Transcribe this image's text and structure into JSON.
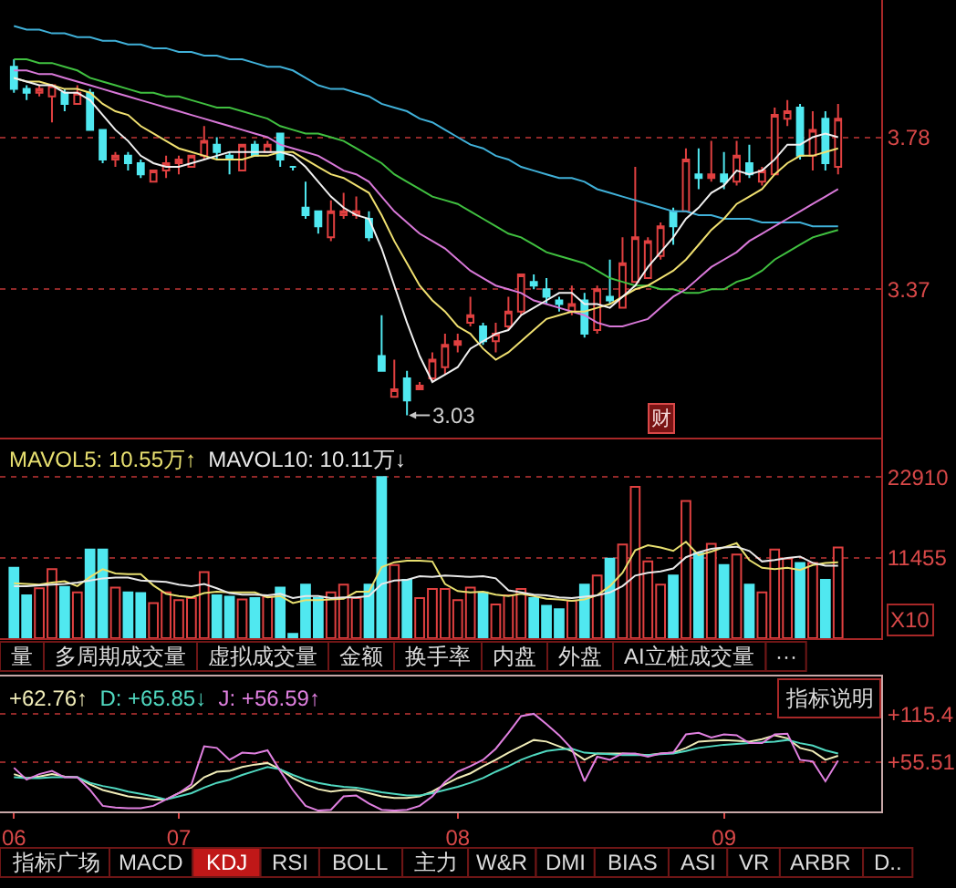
{
  "chart_data": [
    {
      "type": "candlestick",
      "categories": [
        "06",
        null,
        null,
        null,
        null,
        null,
        null,
        null,
        null,
        null,
        null,
        null,
        null,
        "07",
        null,
        null,
        null,
        null,
        null,
        null,
        null,
        null,
        null,
        null,
        null,
        null,
        null,
        null,
        null,
        null,
        null,
        null,
        null,
        null,
        null,
        "08",
        null,
        null,
        null,
        null,
        null,
        null,
        null,
        null,
        null,
        null,
        null,
        null,
        null,
        null,
        null,
        null,
        null,
        null,
        null,
        null,
        "09",
        null,
        null,
        null,
        null,
        null,
        null,
        null,
        null,
        null
      ],
      "ohlc": [
        [
          3.97,
          3.99,
          3.9,
          3.91
        ],
        [
          3.91,
          3.92,
          3.88,
          3.9
        ],
        [
          3.9,
          3.92,
          3.89,
          3.91
        ],
        [
          3.89,
          3.92,
          3.82,
          3.92
        ],
        [
          3.9,
          3.91,
          3.85,
          3.87
        ],
        [
          3.87,
          3.92,
          3.87,
          3.9
        ],
        [
          3.9,
          3.91,
          3.8,
          3.8
        ],
        [
          3.8,
          3.8,
          3.71,
          3.72
        ],
        [
          3.72,
          3.74,
          3.7,
          3.73
        ],
        [
          3.73,
          3.74,
          3.69,
          3.71
        ],
        [
          3.71,
          3.72,
          3.67,
          3.68
        ],
        [
          3.66,
          3.69,
          3.66,
          3.69
        ],
        [
          3.69,
          3.73,
          3.67,
          3.71
        ],
        [
          3.71,
          3.73,
          3.68,
          3.72
        ],
        [
          3.7,
          3.73,
          3.7,
          3.73
        ],
        [
          3.73,
          3.81,
          3.72,
          3.77
        ],
        [
          3.76,
          3.78,
          3.72,
          3.74
        ],
        [
          3.73,
          3.74,
          3.68,
          3.72
        ],
        [
          3.69,
          3.76,
          3.69,
          3.76
        ],
        [
          3.76,
          3.77,
          3.73,
          3.73
        ],
        [
          3.74,
          3.77,
          3.74,
          3.76
        ],
        [
          3.79,
          3.79,
          3.7,
          3.72
        ],
        [
          3.7,
          3.7,
          3.69,
          3.7
        ],
        [
          3.59,
          3.66,
          3.56,
          3.57
        ],
        [
          3.58,
          3.58,
          3.52,
          3.54
        ],
        [
          3.51,
          3.61,
          3.5,
          3.58
        ],
        [
          3.57,
          3.63,
          3.56,
          3.58
        ],
        [
          3.57,
          3.62,
          3.56,
          3.58
        ],
        [
          3.56,
          3.58,
          3.5,
          3.51
        ],
        [
          3.19,
          3.3,
          3.15,
          3.15
        ],
        [
          3.08,
          3.18,
          3.08,
          3.1
        ],
        [
          3.13,
          3.15,
          3.03,
          3.07
        ],
        [
          3.1,
          3.12,
          3.1,
          3.11
        ],
        [
          3.13,
          3.2,
          3.12,
          3.18
        ],
        [
          3.16,
          3.25,
          3.14,
          3.22
        ],
        [
          3.22,
          3.25,
          3.2,
          3.23
        ],
        [
          3.28,
          3.35,
          3.27,
          3.3
        ],
        [
          3.27,
          3.28,
          3.22,
          3.23
        ],
        [
          3.23,
          3.28,
          3.2,
          3.25
        ],
        [
          3.27,
          3.35,
          3.26,
          3.31
        ],
        [
          3.31,
          3.41,
          3.3,
          3.41
        ],
        [
          3.39,
          3.41,
          3.37,
          3.38
        ],
        [
          3.37,
          3.4,
          3.33,
          3.35
        ],
        [
          3.34,
          3.35,
          3.31,
          3.33
        ],
        [
          3.31,
          3.38,
          3.3,
          3.33
        ],
        [
          3.34,
          3.36,
          3.24,
          3.25
        ],
        [
          3.26,
          3.38,
          3.25,
          3.37
        ],
        [
          3.35,
          3.45,
          3.33,
          3.34
        ],
        [
          3.32,
          3.51,
          3.32,
          3.44
        ],
        [
          3.39,
          3.7,
          3.39,
          3.51
        ],
        [
          3.4,
          3.51,
          3.4,
          3.5
        ],
        [
          3.46,
          3.55,
          3.45,
          3.54
        ],
        [
          3.58,
          3.59,
          3.49,
          3.54
        ],
        [
          3.58,
          3.75,
          3.58,
          3.72
        ],
        [
          3.68,
          3.75,
          3.64,
          3.67
        ],
        [
          3.67,
          3.77,
          3.66,
          3.68
        ],
        [
          3.68,
          3.74,
          3.64,
          3.66
        ],
        [
          3.66,
          3.77,
          3.65,
          3.73
        ],
        [
          3.71,
          3.76,
          3.67,
          3.68
        ],
        [
          3.66,
          3.7,
          3.65,
          3.69
        ],
        [
          3.68,
          3.86,
          3.68,
          3.84
        ],
        [
          3.83,
          3.88,
          3.81,
          3.85
        ],
        [
          3.86,
          3.87,
          3.72,
          3.73
        ],
        [
          3.73,
          3.85,
          3.69,
          3.8
        ],
        [
          3.83,
          3.85,
          3.69,
          3.71
        ],
        [
          3.7,
          3.87,
          3.68,
          3.83
        ]
      ],
      "colors": [
        "#50e8f0",
        "#50e8f0",
        "#e04040",
        "#e04040",
        "#50e8f0",
        "#e04040",
        "#50e8f0",
        "#50e8f0",
        "#e04040",
        "#50e8f0",
        "#50e8f0",
        "#e04040",
        "#e04040",
        "#e04040",
        "#e04040",
        "#e04040",
        "#50e8f0",
        "#50e8f0",
        "#e04040",
        "#50e8f0",
        "#e04040",
        "#50e8f0",
        "#50e8f0",
        "#50e8f0",
        "#50e8f0",
        "#e04040",
        "#e04040",
        "#e04040",
        "#50e8f0",
        "#50e8f0",
        "#e04040",
        "#50e8f0",
        "#e04040",
        "#e04040",
        "#e04040",
        "#e04040",
        "#e04040",
        "#50e8f0",
        "#e04040",
        "#e04040",
        "#e04040",
        "#50e8f0",
        "#50e8f0",
        "#50e8f0",
        "#e04040",
        "#50e8f0",
        "#e04040",
        "#50e8f0",
        "#e04040",
        "#e04040",
        "#e04040",
        "#e04040",
        "#50e8f0",
        "#e04040",
        "#50e8f0",
        "#e04040",
        "#50e8f0",
        "#e04040",
        "#50e8f0",
        "#e04040",
        "#e04040",
        "#e04040",
        "#50e8f0",
        "#e04040",
        "#50e8f0",
        "#e04040"
      ],
      "ylim": [
        2.97,
        4.15
      ],
      "yticks": [
        3.37,
        3.78
      ],
      "grid": "y",
      "tick_labels": "y",
      "series": [
        {
          "type": "line",
          "color": "#40b0d8",
          "values": [
            4.08,
            4.07,
            4.07,
            4.06,
            4.06,
            4.05,
            4.05,
            4.04,
            4.04,
            4.03,
            4.03,
            4.02,
            4.02,
            4.01,
            4.01,
            4.0,
            4.0,
            3.99,
            3.99,
            3.98,
            3.97,
            3.97,
            3.96,
            3.94,
            3.92,
            3.91,
            3.91,
            3.9,
            3.89,
            3.87,
            3.86,
            3.85,
            3.83,
            3.82,
            3.8,
            3.78,
            3.76,
            3.75,
            3.73,
            3.72,
            3.7,
            3.69,
            3.68,
            3.67,
            3.67,
            3.66,
            3.64,
            3.63,
            3.62,
            3.61,
            3.6,
            3.59,
            3.58,
            3.58,
            3.57,
            3.57,
            3.56,
            3.56,
            3.56,
            3.55,
            3.55,
            3.55,
            3.55,
            3.54,
            3.54,
            3.54
          ]
        },
        {
          "type": "line",
          "color": "#40c040",
          "values": [
            3.99,
            3.99,
            3.98,
            3.98,
            3.97,
            3.96,
            3.94,
            3.93,
            3.92,
            3.91,
            3.9,
            3.9,
            3.89,
            3.89,
            3.88,
            3.87,
            3.86,
            3.86,
            3.85,
            3.84,
            3.83,
            3.81,
            3.8,
            3.79,
            3.79,
            3.78,
            3.77,
            3.75,
            3.73,
            3.71,
            3.68,
            3.66,
            3.64,
            3.62,
            3.61,
            3.6,
            3.58,
            3.56,
            3.54,
            3.52,
            3.51,
            3.49,
            3.47,
            3.46,
            3.45,
            3.44,
            3.42,
            3.4,
            3.39,
            3.38,
            3.38,
            3.37,
            3.37,
            3.36,
            3.36,
            3.37,
            3.37,
            3.39,
            3.4,
            3.42,
            3.45,
            3.47,
            3.49,
            3.51,
            3.52,
            3.53
          ]
        },
        {
          "type": "line",
          "color": "#d878d8",
          "values": [
            3.96,
            3.96,
            3.95,
            3.95,
            3.94,
            3.93,
            3.92,
            3.91,
            3.9,
            3.89,
            3.88,
            3.87,
            3.86,
            3.85,
            3.84,
            3.83,
            3.82,
            3.81,
            3.8,
            3.79,
            3.78,
            3.76,
            3.75,
            3.74,
            3.73,
            3.71,
            3.69,
            3.68,
            3.66,
            3.62,
            3.58,
            3.55,
            3.52,
            3.5,
            3.48,
            3.45,
            3.42,
            3.4,
            3.38,
            3.37,
            3.36,
            3.34,
            3.33,
            3.32,
            3.31,
            3.3,
            3.28,
            3.27,
            3.27,
            3.28,
            3.29,
            3.32,
            3.35,
            3.37,
            3.4,
            3.43,
            3.45,
            3.47,
            3.5,
            3.52,
            3.54,
            3.56,
            3.58,
            3.6,
            3.62,
            3.64
          ]
        },
        {
          "type": "line",
          "color": "#f0e070",
          "values": [
            3.94,
            3.93,
            3.93,
            3.92,
            3.91,
            3.91,
            3.9,
            3.87,
            3.85,
            3.84,
            3.81,
            3.79,
            3.77,
            3.75,
            3.74,
            3.73,
            3.72,
            3.72,
            3.72,
            3.73,
            3.73,
            3.74,
            3.74,
            3.72,
            3.7,
            3.68,
            3.67,
            3.65,
            3.63,
            3.57,
            3.5,
            3.44,
            3.38,
            3.34,
            3.31,
            3.27,
            3.25,
            3.21,
            3.18,
            3.2,
            3.23,
            3.26,
            3.29,
            3.3,
            3.31,
            3.31,
            3.32,
            3.33,
            3.35,
            3.37,
            3.38,
            3.4,
            3.42,
            3.45,
            3.49,
            3.53,
            3.56,
            3.6,
            3.62,
            3.64,
            3.68,
            3.71,
            3.73,
            3.73,
            3.74,
            3.75
          ]
        },
        {
          "type": "line",
          "color": "#f0f0f0",
          "values": [
            3.94,
            3.93,
            3.92,
            3.92,
            3.9,
            3.9,
            3.88,
            3.84,
            3.8,
            3.77,
            3.73,
            3.71,
            3.7,
            3.7,
            3.71,
            3.72,
            3.73,
            3.74,
            3.74,
            3.74,
            3.74,
            3.74,
            3.73,
            3.7,
            3.66,
            3.62,
            3.59,
            3.57,
            3.56,
            3.48,
            3.38,
            3.28,
            3.19,
            3.12,
            3.14,
            3.16,
            3.21,
            3.23,
            3.25,
            3.26,
            3.3,
            3.32,
            3.34,
            3.36,
            3.36,
            3.33,
            3.33,
            3.32,
            3.35,
            3.38,
            3.43,
            3.47,
            3.51,
            3.56,
            3.59,
            3.63,
            3.65,
            3.69,
            3.68,
            3.69,
            3.72,
            3.76,
            3.76,
            3.78,
            3.79,
            3.78
          ]
        }
      ],
      "annotations": [
        "3.03",
        "财"
      ]
    },
    {
      "type": "bar",
      "categories": [
        "06",
        null,
        null,
        null,
        null,
        null,
        null,
        null,
        null,
        null,
        null,
        null,
        null,
        "07",
        null,
        null,
        null,
        null,
        null,
        null,
        null,
        null,
        null,
        null,
        null,
        null,
        null,
        null,
        null,
        null,
        null,
        null,
        null,
        null,
        null,
        "08",
        null,
        null,
        null,
        null,
        null,
        null,
        null,
        null,
        null,
        null,
        null,
        null,
        null,
        null,
        null,
        null,
        null,
        null,
        null,
        null,
        "09",
        null,
        null,
        null,
        null,
        null,
        null,
        null,
        null,
        null
      ],
      "ylim": [
        0,
        28500
      ],
      "yticks": [
        11455,
        22910
      ],
      "grid": "y",
      "tick_labels": "y",
      "legend": "top left",
      "series": [
        {
          "type": "bar",
          "values": [
            10000,
            6100,
            7100,
            9800,
            7300,
            6500,
            12600,
            12600,
            7200,
            6500,
            6400,
            5000,
            6500,
            5400,
            5700,
            9400,
            6100,
            5900,
            5500,
            5700,
            5900,
            7200,
            600,
            7600,
            5700,
            6500,
            7600,
            5700,
            7600,
            22900,
            10400,
            8300,
            5700,
            7000,
            7000,
            5400,
            7200,
            6500,
            4800,
            6100,
            7000,
            5700,
            4600,
            4100,
            5300,
            7600,
            8900,
            11300,
            13300,
            21500,
            10900,
            7600,
            8900,
            19500,
            12100,
            13400,
            10400,
            11900,
            7600,
            6500,
            12600,
            11300,
            10700,
            10700,
            8300,
            12900
          ],
          "colors": [
            "#50e8f0",
            "#50e8f0",
            "#e04040",
            "#e04040",
            "#50e8f0",
            "#e04040",
            "#50e8f0",
            "#50e8f0",
            "#e04040",
            "#50e8f0",
            "#50e8f0",
            "#e04040",
            "#e04040",
            "#e04040",
            "#e04040",
            "#e04040",
            "#50e8f0",
            "#50e8f0",
            "#e04040",
            "#50e8f0",
            "#e04040",
            "#50e8f0",
            "#50e8f0",
            "#50e8f0",
            "#50e8f0",
            "#e04040",
            "#e04040",
            "#e04040",
            "#50e8f0",
            "#50e8f0",
            "#e04040",
            "#50e8f0",
            "#e04040",
            "#e04040",
            "#e04040",
            "#e04040",
            "#e04040",
            "#50e8f0",
            "#e04040",
            "#e04040",
            "#e04040",
            "#50e8f0",
            "#50e8f0",
            "#50e8f0",
            "#e04040",
            "#50e8f0",
            "#e04040",
            "#50e8f0",
            "#e04040",
            "#e04040",
            "#e04040",
            "#e04040",
            "#50e8f0",
            "#e04040",
            "#50e8f0",
            "#e04040",
            "#50e8f0",
            "#e04040",
            "#50e8f0",
            "#e04040",
            "#e04040",
            "#e04040",
            "#50e8f0",
            "#e04040",
            "#50e8f0",
            "#e04040"
          ]
        },
        {
          "type": "line",
          "name": "MAVOL5: 10.55万↑",
          "color": "#e8e070",
          "values": [
            7800,
            7700,
            7600,
            7900,
            8100,
            7400,
            8700,
            9800,
            9200,
            9100,
            9100,
            7500,
            6300,
            6000,
            5800,
            6400,
            6600,
            6500,
            6500,
            6500,
            5800,
            6000,
            5000,
            5400,
            5400,
            5500,
            5600,
            6600,
            6600,
            10100,
            10800,
            11000,
            11000,
            10900,
            7700,
            6700,
            6500,
            6600,
            6200,
            6000,
            6300,
            6000,
            5600,
            5500,
            5300,
            5500,
            6100,
            7400,
            9300,
            12500,
            13200,
            12900,
            12400,
            13700,
            11800,
            12300,
            12900,
            13500,
            11100,
            10000,
            9800,
            10000,
            9700,
            10400,
            10700,
            10800
          ]
        },
        {
          "type": "line",
          "name": "MAVOL10: 10.11万↓",
          "color": "#e8e8e8",
          "values": [
            7400,
            7400,
            7500,
            7600,
            7700,
            7900,
            8200,
            8500,
            8600,
            8600,
            8200,
            8100,
            8000,
            7600,
            7400,
            7700,
            7100,
            6400,
            6200,
            6200,
            6100,
            6300,
            5700,
            6000,
            6000,
            5700,
            5800,
            5800,
            6000,
            7700,
            8200,
            8300,
            8800,
            8700,
            8900,
            8800,
            8700,
            8800,
            8500,
            6800,
            6500,
            6200,
            6100,
            5800,
            5700,
            5900,
            6100,
            6500,
            7400,
            8900,
            9300,
            9500,
            9900,
            11500,
            12200,
            12700,
            12900,
            13000,
            12400,
            10900,
            11100,
            11400,
            11600,
            10700,
            10300,
            10300
          ]
        }
      ],
      "annotations": [
        "X10"
      ]
    },
    {
      "type": "other",
      "annotations": [
        "量",
        "多周期成交量",
        "虚拟成交量",
        "金额",
        "换手率",
        "内盘",
        "外盘",
        "AI立桩成交量",
        "···"
      ]
    },
    {
      "type": "line",
      "categories": [
        "06",
        null,
        null,
        null,
        null,
        null,
        null,
        null,
        null,
        null,
        null,
        null,
        null,
        "07",
        null,
        null,
        null,
        null,
        null,
        null,
        null,
        null,
        null,
        null,
        null,
        null,
        null,
        null,
        null,
        null,
        null,
        null,
        null,
        null,
        null,
        "08",
        null,
        null,
        null,
        null,
        null,
        null,
        null,
        null,
        null,
        null,
        null,
        null,
        null,
        null,
        null,
        null,
        null,
        null,
        null,
        null,
        "09",
        null,
        null,
        null,
        null,
        null,
        null,
        null,
        null,
        null
      ],
      "ylim": [
        -7,
        163
      ],
      "yticks": [
        {
          "value": 115.4,
          "label": "+115.4"
        },
        {
          "value": 55.51,
          "label": "+55.51"
        }
      ],
      "grid": "y",
      "legend": "top left",
      "series": [
        {
          "name": "+62.76↑",
          "color": "#f0ecb8",
          "values": [
            40,
            35,
            37,
            40,
            37,
            36,
            27,
            20,
            16,
            12,
            10,
            8,
            8,
            16,
            23,
            36,
            43,
            44,
            49,
            52,
            54,
            46,
            35,
            27,
            21,
            18,
            20,
            20,
            16,
            12,
            10,
            10,
            12,
            18,
            27,
            35,
            41,
            50,
            58,
            67,
            75,
            83,
            81,
            75,
            69,
            58,
            66,
            66,
            66,
            65,
            64,
            66,
            67,
            73,
            81,
            82,
            83,
            82,
            81,
            84,
            89,
            85,
            73,
            69,
            58,
            63
          ]
        },
        {
          "name": "D: +65.85↓",
          "color": "#50d8c0",
          "values": [
            36,
            35,
            35,
            36,
            36,
            36,
            29,
            25,
            22,
            18,
            15,
            12,
            8,
            12,
            16,
            23,
            29,
            33,
            39,
            44,
            49,
            46,
            39,
            33,
            29,
            26,
            24,
            23,
            20,
            17,
            15,
            13,
            13,
            16,
            20,
            24,
            29,
            35,
            43,
            50,
            58,
            64,
            69,
            71,
            72,
            67,
            66,
            65,
            64,
            64,
            64,
            65,
            66,
            69,
            73,
            75,
            77,
            78,
            79,
            80,
            81,
            83,
            79,
            76,
            70,
            66
          ]
        },
        {
          "name": "J: +56.59↑",
          "color": "#e080e0",
          "values": [
            48,
            33,
            40,
            44,
            36,
            36,
            20,
            0,
            -2,
            -3,
            -3,
            0,
            8,
            16,
            27,
            75,
            73,
            58,
            67,
            66,
            70,
            44,
            20,
            0,
            -6,
            -5,
            12,
            13,
            3,
            -5,
            -6,
            -5,
            0,
            12,
            30,
            43,
            50,
            58,
            72,
            92,
            113,
            116,
            103,
            89,
            72,
            31,
            62,
            58,
            66,
            66,
            62,
            66,
            67,
            90,
            92,
            86,
            90,
            89,
            79,
            79,
            90,
            91,
            58,
            56,
            31,
            57
          ]
        }
      ],
      "annotations": [
        "指标说明"
      ]
    },
    {
      "type": "other",
      "annotations": [
        "指标广场",
        "MACD",
        "KDJ",
        "RSI",
        "BOLL",
        "主力",
        "W&R",
        "DMI",
        "BIAS",
        "ASI",
        "VR",
        "ARBR",
        "D.."
      ],
      "colors": [
        "#000000",
        "#000000",
        "#c01818",
        "#000000",
        "#000000",
        "#000000",
        "#000000",
        "#000000",
        "#000000",
        "#000000",
        "#000000",
        "#000000",
        "#000000"
      ]
    }
  ]
}
